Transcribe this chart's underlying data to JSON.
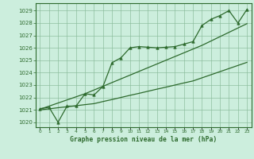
{
  "xlabel": "Graphe pression niveau de la mer (hPa)",
  "x_values": [
    0,
    1,
    2,
    3,
    4,
    5,
    6,
    7,
    8,
    9,
    10,
    11,
    12,
    13,
    14,
    15,
    16,
    17,
    18,
    19,
    20,
    21,
    22,
    23
  ],
  "y_values": [
    1021.1,
    1021.2,
    1020.0,
    1021.3,
    1021.3,
    1022.3,
    1022.2,
    1022.9,
    1024.8,
    1025.2,
    1026.0,
    1026.1,
    1026.05,
    1026.0,
    1026.05,
    1026.1,
    1026.3,
    1026.5,
    1027.8,
    1028.3,
    1028.6,
    1029.0,
    1028.0,
    1029.1
  ],
  "trend_low": [
    1021.0,
    1021.08,
    1021.17,
    1021.25,
    1021.33,
    1021.42,
    1021.5,
    1021.67,
    1021.83,
    1022.0,
    1022.17,
    1022.33,
    1022.5,
    1022.67,
    1022.83,
    1023.0,
    1023.17,
    1023.33,
    1023.58,
    1023.83,
    1024.08,
    1024.33,
    1024.58,
    1024.83
  ],
  "trend_high": [
    1021.05,
    1021.3,
    1021.55,
    1021.8,
    1022.05,
    1022.3,
    1022.6,
    1022.9,
    1023.2,
    1023.5,
    1023.8,
    1024.1,
    1024.4,
    1024.7,
    1025.0,
    1025.3,
    1025.6,
    1025.9,
    1026.2,
    1026.55,
    1026.9,
    1027.25,
    1027.6,
    1027.95
  ],
  "line_color": "#2d6a2d",
  "bg_color": "#cceedd",
  "grid_color": "#88bb99",
  "ylim_min": 1019.6,
  "ylim_max": 1029.6,
  "yticks": [
    1020,
    1021,
    1022,
    1023,
    1024,
    1025,
    1026,
    1027,
    1028,
    1029
  ]
}
